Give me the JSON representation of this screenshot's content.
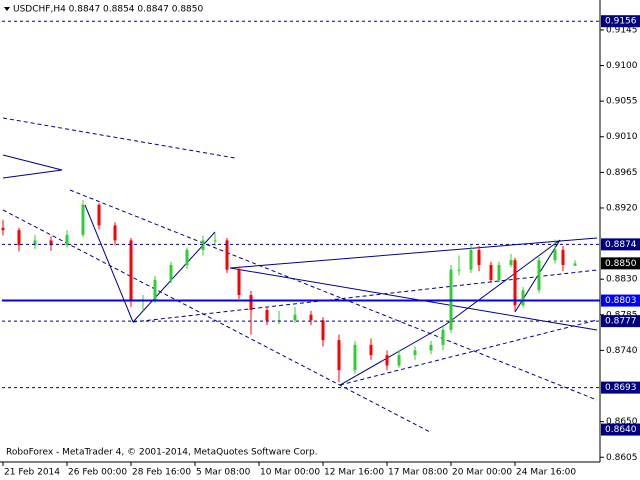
{
  "chart_data": {
    "type": "candlestick",
    "title": "USDCHF,H4  0.8847 0.8854 0.8847 0.8850",
    "footer": "RoboForex - MetaTrader 4, © 2001-2014, MetaQuotes Software Corp.",
    "up_color": "#32cd32",
    "down_color": "#ff0000",
    "x": [
      0,
      4,
      8,
      12,
      16,
      20,
      24,
      28,
      32,
      35,
      38,
      42,
      46,
      50,
      53,
      56,
      59,
      62,
      66,
      69,
      73,
      77,
      80,
      84,
      88,
      92,
      96,
      99,
      103,
      107,
      110,
      112,
      114,
      117,
      119,
      122,
      124,
      127,
      128,
      130,
      134,
      138,
      140,
      143
    ],
    "open": [
      0.8895,
      0.8892,
      0.8873,
      0.8879,
      0.8873,
      0.8886,
      0.8924,
      0.8898,
      0.8879,
      0.8804,
      0.8804,
      0.8829,
      0.8848,
      0.8867,
      0.8879,
      0.8879,
      0.8842,
      0.881,
      0.8791,
      0.8778,
      0.8778,
      0.8785,
      0.8778,
      0.8753,
      0.8715,
      0.8747,
      0.8734,
      0.8721,
      0.8734,
      0.874,
      0.8747,
      0.8766,
      0.8842,
      0.8842,
      0.8867,
      0.8848,
      0.8829,
      0.8848,
      0.8854,
      0.8797,
      0.8816,
      0.8854,
      0.8867,
      0.8847
    ],
    "high": [
      0.8905,
      0.8895,
      0.8886,
      0.8884,
      0.8892,
      0.893,
      0.8926,
      0.8902,
      0.8882,
      0.881,
      0.8834,
      0.8852,
      0.887,
      0.8885,
      0.8888,
      0.8882,
      0.8846,
      0.8815,
      0.8795,
      0.879,
      0.8795,
      0.879,
      0.8782,
      0.876,
      0.8752,
      0.8755,
      0.874,
      0.874,
      0.8745,
      0.8752,
      0.877,
      0.8848,
      0.886,
      0.8873,
      0.8872,
      0.8852,
      0.8852,
      0.8862,
      0.8857,
      0.882,
      0.8858,
      0.888,
      0.8872,
      0.8854
    ],
    "low": [
      0.8885,
      0.8865,
      0.8868,
      0.8866,
      0.887,
      0.8883,
      0.8893,
      0.8873,
      0.8795,
      0.879,
      0.88,
      0.8825,
      0.8843,
      0.886,
      0.8872,
      0.8838,
      0.8805,
      0.876,
      0.8772,
      0.8773,
      0.8775,
      0.8772,
      0.8745,
      0.87,
      0.871,
      0.8728,
      0.8715,
      0.8718,
      0.8728,
      0.8735,
      0.874,
      0.8762,
      0.8835,
      0.8838,
      0.884,
      0.8825,
      0.8826,
      0.8845,
      0.879,
      0.8794,
      0.8812,
      0.885,
      0.884,
      0.8847
    ],
    "close": [
      0.8892,
      0.8873,
      0.8879,
      0.8873,
      0.8886,
      0.8924,
      0.8898,
      0.8879,
      0.8804,
      0.8804,
      0.8829,
      0.8848,
      0.8867,
      0.8879,
      0.8879,
      0.8842,
      0.881,
      0.8791,
      0.8778,
      0.8778,
      0.8785,
      0.8778,
      0.8753,
      0.8715,
      0.8747,
      0.8734,
      0.8721,
      0.8734,
      0.874,
      0.8747,
      0.8766,
      0.8842,
      0.8842,
      0.8867,
      0.8848,
      0.8829,
      0.8848,
      0.8854,
      0.8797,
      0.8816,
      0.8854,
      0.8867,
      0.8848,
      0.885
    ],
    "xlim": [
      -0.25,
      148.5
    ],
    "ylim": [
      0.8599,
      0.9179
    ],
    "xticks": [
      {
        "value": 0,
        "label": "21 Feb 2014"
      },
      {
        "value": 16,
        "label": "26 Feb 00:00"
      },
      {
        "value": 32,
        "label": "28 Feb 16:00"
      },
      {
        "value": 48,
        "label": "5 Mar 08:00"
      },
      {
        "value": 64,
        "label": "10 Mar 00:00"
      },
      {
        "value": 80,
        "label": "12 Mar 16:00"
      },
      {
        "value": 96,
        "label": "17 Mar 08:00"
      },
      {
        "value": 112,
        "label": "20 Mar 00:00"
      },
      {
        "value": 128,
        "label": "24 Mar 16:00"
      }
    ],
    "yticks": [
      {
        "value": 0.9145,
        "label": "0.9145"
      },
      {
        "value": 0.91,
        "label": "0.9100"
      },
      {
        "value": 0.9055,
        "label": "0.9055"
      },
      {
        "value": 0.901,
        "label": "0.9010"
      },
      {
        "value": 0.8965,
        "label": "0.8965"
      },
      {
        "value": 0.892,
        "label": "0.8920"
      },
      {
        "value": 0.883,
        "label": "0.8830"
      },
      {
        "value": 0.8785,
        "label": "0.8785"
      },
      {
        "value": 0.874,
        "label": "0.8740"
      },
      {
        "value": 0.865,
        "label": "0.8650"
      },
      {
        "value": 0.8605,
        "label": "0.8605"
      }
    ],
    "levels": [
      {
        "value": 0.9156,
        "label": "0.9156",
        "style": "dashed",
        "color": "#000080"
      },
      {
        "value": 0.8874,
        "label": "0.8874",
        "style": "dashed",
        "color": "#000080"
      },
      {
        "value": 0.8803,
        "label": "0.8803",
        "style": "solid",
        "color": "#0000ff"
      },
      {
        "value": 0.8777,
        "label": "0.8777",
        "style": "dashed",
        "color": "#000080"
      },
      {
        "value": 0.8693,
        "label": "0.8693",
        "style": "dashed",
        "color": "#000080"
      },
      {
        "value": 0.864,
        "label": "0.8640",
        "style": "none",
        "color": "#000080"
      }
    ],
    "bid": {
      "value": 0.885,
      "label": "0.8850",
      "color": "#000000"
    }
  }
}
